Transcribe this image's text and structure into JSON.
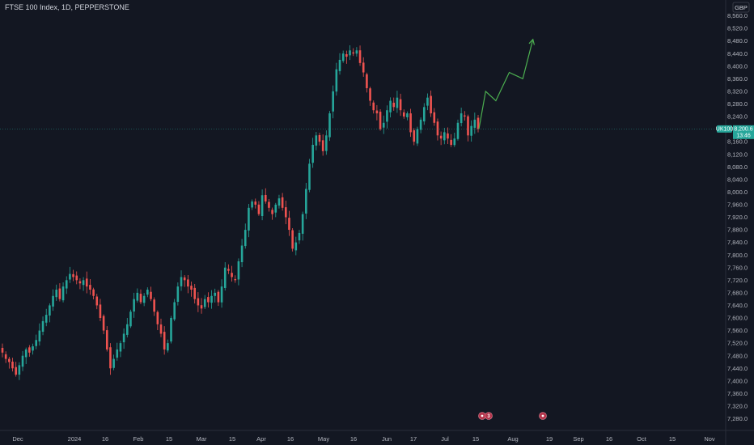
{
  "header": {
    "title": "FTSE 100 Index, 1D, PEPPERSTONE",
    "currency": "GBP"
  },
  "price_badge": {
    "symbol": "UK100",
    "price": "8,200.6",
    "countdown": "13:46"
  },
  "events": [
    {
      "label": "3"
    },
    {
      "label": ""
    }
  ],
  "colors": {
    "background": "#131722",
    "up": "#26a69a",
    "down": "#ef5350",
    "projection": "#4caf50",
    "event": "#b5344b"
  },
  "chart_data": {
    "type": "candlestick",
    "symbol": "FTSE 100 Index",
    "interval": "1D",
    "source": "PEPPERSTONE",
    "currency": "GBP",
    "last_price": 8200.6,
    "ylim": [
      7240,
      8580
    ],
    "yticks": [
      8560,
      8520,
      8480,
      8440,
      8400,
      8360,
      8320,
      8280,
      8240,
      8200,
      8160,
      8120,
      8080,
      8040,
      8000,
      7960,
      7920,
      7880,
      7840,
      7800,
      7760,
      7720,
      7680,
      7640,
      7600,
      7560,
      7520,
      7480,
      7440,
      7400,
      7360,
      7320,
      7280
    ],
    "ytick_labels": [
      "8,560.0",
      "8,520.0",
      "8,480.0",
      "8,440.0",
      "8,400.0",
      "8,360.0",
      "8,320.0",
      "8,280.0",
      "8,240.0",
      "8,200.0",
      "8,160.0",
      "8,120.0",
      "8,080.0",
      "8,040.0",
      "8,000.0",
      "7,960.0",
      "7,920.0",
      "7,880.0",
      "7,840.0",
      "7,800.0",
      "7,760.0",
      "7,720.0",
      "7,680.0",
      "7,640.0",
      "7,600.0",
      "7,560.0",
      "7,520.0",
      "7,480.0",
      "7,440.0",
      "7,400.0",
      "7,360.0",
      "7,320.0",
      "7,280.0"
    ],
    "xlabels": [
      "Dec",
      "2024",
      "16",
      "Feb",
      "15",
      "Mar",
      "15",
      "Apr",
      "16",
      "May",
      "16",
      "Jun",
      "17",
      "Jul",
      "15",
      "Aug",
      "19",
      "Sep",
      "16",
      "Oct",
      "15",
      "Nov"
    ],
    "closes": [
      7490,
      7470,
      7460,
      7440,
      7420,
      7450,
      7480,
      7500,
      7490,
      7510,
      7530,
      7560,
      7590,
      7610,
      7640,
      7670,
      7690,
      7660,
      7700,
      7720,
      7740,
      7730,
      7720,
      7710,
      7720,
      7700,
      7690,
      7670,
      7640,
      7600,
      7560,
      7500,
      7440,
      7470,
      7500,
      7520,
      7550,
      7580,
      7620,
      7660,
      7680,
      7650,
      7670,
      7690,
      7660,
      7620,
      7580,
      7550,
      7500,
      7520,
      7600,
      7650,
      7700,
      7730,
      7720,
      7700,
      7690,
      7660,
      7640,
      7630,
      7660,
      7650,
      7670,
      7680,
      7650,
      7700,
      7760,
      7750,
      7730,
      7720,
      7780,
      7830,
      7880,
      7950,
      7970,
      7960,
      7930,
      7990,
      7970,
      7950,
      7930,
      7960,
      7980,
      7950,
      7920,
      7880,
      7820,
      7840,
      7870,
      7930,
      8010,
      8090,
      8150,
      8180,
      8160,
      8130,
      8180,
      8250,
      8320,
      8390,
      8420,
      8440,
      8430,
      8450,
      8440,
      8450,
      8410,
      8380,
      8330,
      8290,
      8260,
      8250,
      8200,
      8220,
      8260,
      8290,
      8270,
      8300,
      8260,
      8240,
      8250,
      8190,
      8160,
      8200,
      8230,
      8270,
      8300,
      8250,
      8220,
      8180,
      8170,
      8190,
      8170,
      8150,
      8170,
      8220,
      8250,
      8240,
      8180,
      8210,
      8230,
      8200
    ],
    "projection": {
      "points": [
        [
          8200.6,
          0
        ],
        [
          8320,
          2
        ],
        [
          8290,
          5
        ],
        [
          8380,
          9
        ],
        [
          8360,
          13
        ],
        [
          8485,
          16
        ]
      ],
      "description_x_units": "trading days after last candle"
    },
    "grid": false
  }
}
